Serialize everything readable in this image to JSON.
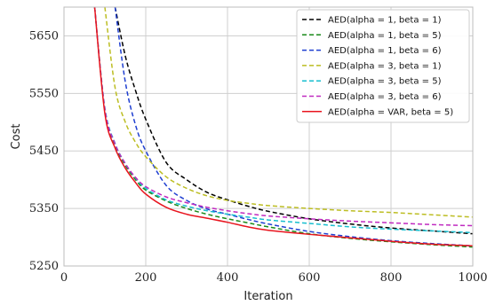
{
  "chart_data": {
    "type": "line",
    "xlabel": "Iteration",
    "ylabel": "Cost",
    "xlim": [
      0,
      1000
    ],
    "ylim": [
      5250,
      5700
    ],
    "xticks": [
      0,
      200,
      400,
      600,
      800,
      1000
    ],
    "yticks": [
      5250,
      5350,
      5450,
      5550,
      5650
    ],
    "grid": true,
    "legend_position": "top-right",
    "x": [
      75,
      100,
      125,
      150,
      175,
      200,
      250,
      300,
      350,
      400,
      450,
      500,
      600,
      700,
      800,
      900,
      1000
    ],
    "series": [
      {
        "name": "AED(alpha = 1, beta = 1)",
        "color": "#000000",
        "dash": "dashed",
        "values": [
          null,
          null,
          5700,
          5615,
          5555,
          5505,
          5430,
          5400,
          5378,
          5365,
          5354,
          5345,
          5332,
          5323,
          5316,
          5311,
          5306
        ]
      },
      {
        "name": "AED(alpha = 1, beta = 5)",
        "color": "#1a8a1a",
        "dash": "dashed",
        "values": [
          5700,
          5520,
          5460,
          5425,
          5400,
          5382,
          5363,
          5350,
          5340,
          5332,
          5325,
          5318,
          5306,
          5298,
          5292,
          5287,
          5283
        ]
      },
      {
        "name": "AED(alpha = 1, beta = 6)",
        "color": "#1f3fd1",
        "dash": "dashed",
        "values": [
          null,
          null,
          5700,
          5570,
          5495,
          5450,
          5390,
          5364,
          5349,
          5340,
          5331,
          5323,
          5310,
          5301,
          5294,
          5289,
          5285
        ]
      },
      {
        "name": "AED(alpha = 3, beta = 1)",
        "color": "#bcbd22",
        "dash": "dashed",
        "values": [
          null,
          5700,
          5560,
          5500,
          5465,
          5440,
          5405,
          5385,
          5372,
          5364,
          5359,
          5355,
          5350,
          5346,
          5343,
          5339,
          5335
        ]
      },
      {
        "name": "AED(alpha = 3, beta = 5)",
        "color": "#17becf",
        "dash": "dashed",
        "values": [
          5700,
          5525,
          5463,
          5428,
          5403,
          5385,
          5365,
          5354,
          5346,
          5340,
          5335,
          5330,
          5324,
          5318,
          5314,
          5311,
          5308
        ]
      },
      {
        "name": "AED(alpha = 3, beta = 6)",
        "color": "#c02ac0",
        "dash": "dashed",
        "values": [
          5700,
          5522,
          5462,
          5428,
          5404,
          5388,
          5370,
          5360,
          5352,
          5346,
          5341,
          5337,
          5332,
          5328,
          5325,
          5322,
          5320
        ]
      },
      {
        "name": "AED(alpha = VAR, beta = 5)",
        "color": "#e8141e",
        "dash": "solid",
        "values": [
          5700,
          5515,
          5455,
          5420,
          5395,
          5375,
          5352,
          5340,
          5333,
          5326,
          5318,
          5312,
          5305,
          5299,
          5293,
          5288,
          5285
        ]
      }
    ]
  }
}
